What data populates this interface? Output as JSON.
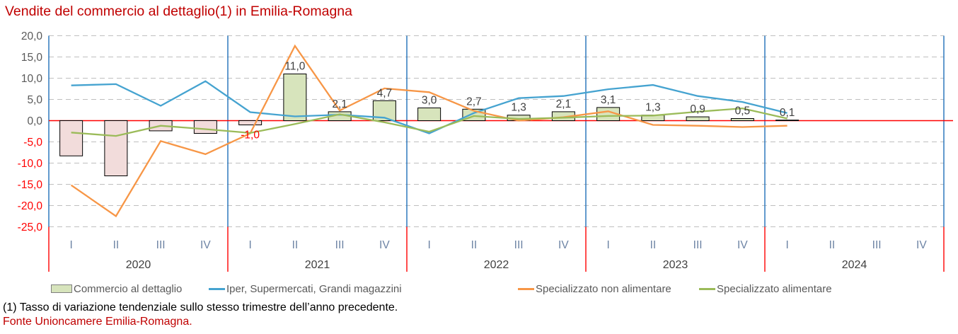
{
  "title": "Vendite del commercio al dettaglio(1) in Emilia-Romagna",
  "footnotes": {
    "note": "(1) Tasso di variazione tendenziale sullo stesso trimestre dell’anno precedente.",
    "source": "Fonte Unioncamere Emilia-Romagna."
  },
  "legend": {
    "position": "bottom",
    "items": [
      {
        "label": "Commercio al dettaglio",
        "swatch": "bar",
        "color": "#D7E4BC"
      },
      {
        "label": "Iper, Supermercati, Grandi magazzini",
        "swatch": "line",
        "color": "#45A3D0"
      },
      {
        "label": "Specializzato non alimentare",
        "swatch": "line",
        "color": "#F79646"
      },
      {
        "label": "Specializzato alimentare",
        "swatch": "line",
        "color": "#9BBB59"
      }
    ]
  },
  "chart_data": {
    "type": "bar+line",
    "title": "Vendite del commercio al dettaglio(1) in Emilia-Romagna",
    "ylim": [
      -25,
      20
    ],
    "grid": true,
    "legend_position": "bottom",
    "years": [
      "2020",
      "2021",
      "2022",
      "2023",
      "2024"
    ],
    "quarter_labels": [
      "I",
      "II",
      "III",
      "IV"
    ],
    "y_ticks": [
      {
        "value": 20,
        "label": "20,0"
      },
      {
        "value": 15,
        "label": "15,0"
      },
      {
        "value": 10,
        "label": "10,0"
      },
      {
        "value": 5,
        "label": "5,0"
      },
      {
        "value": 0,
        "label": "0,0"
      },
      {
        "value": -5,
        "label": "-5,0"
      },
      {
        "value": -10,
        "label": "-10,0"
      },
      {
        "value": -15,
        "label": "-15,0"
      },
      {
        "value": -20,
        "label": "-20,0"
      },
      {
        "value": -25,
        "label": "-25,0"
      }
    ],
    "colors": {
      "zero_line": "#FF0000",
      "year_divider": "#1F6FB8",
      "grid": "#BFBFBF",
      "tick_negative": "#FF0000",
      "tick_positive": "#595959",
      "quarter_label": "#6C83A4",
      "year_label": "#404040",
      "bar_label": "#404040"
    },
    "series": [
      {
        "name": "Commercio al dettaglio",
        "type": "bar",
        "positive_fill": "#D7E4BC",
        "negative_fill": "#F2DCDB",
        "stroke": "#000000",
        "values": [
          -8.3,
          -13.0,
          -2.4,
          -3.0,
          -1.0,
          11.0,
          2.1,
          4.7,
          3.0,
          2.7,
          1.3,
          2.1,
          3.1,
          1.3,
          0.9,
          0.5,
          0.1,
          null,
          null,
          null
        ],
        "labels": [
          null,
          null,
          null,
          null,
          "-1,0",
          "11,0",
          "2,1",
          "4,7",
          "3,0",
          "2,7",
          "1,3",
          "2,1",
          "3,1",
          "1,3",
          "0,9",
          "0,5",
          "0,1",
          null,
          null,
          null
        ]
      },
      {
        "name": "Iper, Supermercati, Grandi magazzini",
        "type": "line",
        "color": "#45A3D0",
        "values": [
          8.3,
          8.6,
          3.5,
          9.3,
          2.0,
          1.0,
          1.4,
          0.7,
          -3.0,
          1.8,
          5.3,
          5.8,
          7.4,
          8.4,
          5.8,
          4.4,
          1.8
        ]
      },
      {
        "name": "Specializzato non alimentare",
        "type": "line",
        "color": "#F79646",
        "values": [
          -15.2,
          -22.5,
          -4.8,
          -7.9,
          -3.0,
          17.6,
          2.4,
          7.6,
          6.7,
          2.3,
          0.0,
          0.8,
          2.2,
          -1.0,
          -1.2,
          -1.5,
          -1.2
        ]
      },
      {
        "name": "Specializzato alimentare",
        "type": "line",
        "color": "#9BBB59",
        "values": [
          -2.8,
          -3.6,
          -1.2,
          -2.0,
          -2.9,
          -0.8,
          1.5,
          -0.4,
          -2.6,
          1.1,
          0.4,
          0.7,
          1.1,
          1.2,
          2.1,
          2.9,
          0.5
        ]
      }
    ]
  }
}
